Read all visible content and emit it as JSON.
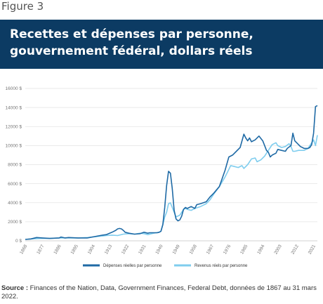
{
  "figure_label": "Figure 3",
  "title_line1": "Recettes et dépenses par personne,",
  "title_line2": "gouvernement fédéral, dollars réels",
  "source_label": "Source :",
  "source_text": "Finances of the Nation, Data, Government Finances, Federal Debt, données de 1867 au 31 mars 2022.",
  "colors": {
    "banner": "#0c3b63",
    "expenses": "#1f6aa5",
    "revenues": "#7fcdee"
  },
  "chart_data": {
    "type": "line",
    "xlim": [
      1867,
      2022
    ],
    "ylim": [
      0,
      16000
    ],
    "y_ticks": [
      "0 $",
      "2000 $",
      "4000 $",
      "6000 $",
      "8000 $",
      "10000 $",
      "12000 $",
      "14000 $",
      "16000 $"
    ],
    "y_tick_values": [
      0,
      2000,
      4000,
      6000,
      8000,
      10000,
      12000,
      14000,
      16000
    ],
    "x_ticks": [
      "1868",
      "1877",
      "1886",
      "1895",
      "1904",
      "1913",
      "1922",
      "1931",
      "1940",
      "1949",
      "1958",
      "1967",
      "1976",
      "1985",
      "1994",
      "2003",
      "2012",
      "2021"
    ],
    "x_tick_values": [
      1868,
      1877,
      1886,
      1895,
      1904,
      1913,
      1922,
      1931,
      1940,
      1949,
      1958,
      1967,
      1976,
      1985,
      1994,
      2003,
      2012,
      2021
    ],
    "legend_position": "bottom",
    "series": [
      {
        "name": "Dépenses réelles par personne",
        "x": [
          1867,
          1870,
          1873,
          1876,
          1880,
          1885,
          1886,
          1888,
          1890,
          1895,
          1900,
          1904,
          1908,
          1910,
          1913,
          1915,
          1916,
          1917,
          1918,
          1919,
          1920,
          1922,
          1925,
          1928,
          1930,
          1932,
          1933,
          1935,
          1937,
          1938,
          1939,
          1940,
          1941,
          1942,
          1943,
          1944,
          1945,
          1946,
          1947,
          1948,
          1949,
          1950,
          1951,
          1952,
          1953,
          1955,
          1957,
          1958,
          1960,
          1963,
          1965,
          1967,
          1970,
          1973,
          1975,
          1977,
          1979,
          1981,
          1983,
          1984,
          1985,
          1986,
          1987,
          1989,
          1991,
          1993,
          1994,
          1995,
          1996,
          1997,
          1998,
          2000,
          2001,
          2003,
          2005,
          2006,
          2008,
          2009,
          2010,
          2011,
          2013,
          2015,
          2017,
          2018,
          2019,
          2020,
          2021,
          2022
        ],
        "y": [
          150,
          200,
          350,
          300,
          250,
          300,
          400,
          300,
          350,
          300,
          300,
          450,
          600,
          650,
          900,
          1100,
          1250,
          1300,
          1250,
          1100,
          900,
          800,
          700,
          750,
          900,
          800,
          850,
          850,
          850,
          900,
          1000,
          1700,
          3500,
          5800,
          7300,
          7100,
          5500,
          3200,
          2300,
          2100,
          2200,
          2600,
          3300,
          3500,
          3400,
          3600,
          3400,
          3800,
          3900,
          4100,
          4600,
          5000,
          5700,
          7400,
          8800,
          9000,
          9400,
          9800,
          11200,
          10800,
          10500,
          10800,
          10400,
          10600,
          11000,
          10500,
          10000,
          9500,
          9300,
          8800,
          9000,
          9200,
          9600,
          9500,
          9400,
          9700,
          10000,
          11300,
          10500,
          10300,
          9900,
          9700,
          9700,
          9800,
          10100,
          11300,
          14100,
          14200
        ]
      },
      {
        "name": "Revenus réels par personne",
        "x": [
          1867,
          1870,
          1875,
          1880,
          1885,
          1890,
          1895,
          1900,
          1905,
          1910,
          1913,
          1916,
          1919,
          1922,
          1925,
          1928,
          1930,
          1932,
          1935,
          1938,
          1939,
          1940,
          1941,
          1942,
          1943,
          1944,
          1945,
          1946,
          1947,
          1948,
          1949,
          1950,
          1951,
          1952,
          1953,
          1955,
          1957,
          1960,
          1963,
          1965,
          1967,
          1970,
          1973,
          1975,
          1976,
          1978,
          1980,
          1982,
          1983,
          1985,
          1987,
          1989,
          1990,
          1992,
          1994,
          1996,
          1998,
          2000,
          2001,
          2003,
          2005,
          2007,
          2008,
          2009,
          2010,
          2012,
          2015,
          2017,
          2019,
          2020,
          2021,
          2022
        ],
        "y": [
          150,
          200,
          250,
          250,
          300,
          300,
          300,
          350,
          450,
          550,
          600,
          550,
          700,
          750,
          700,
          800,
          750,
          650,
          800,
          900,
          1000,
          1700,
          2500,
          3000,
          3900,
          4000,
          3500,
          3000,
          2500,
          2600,
          2700,
          3000,
          3300,
          3400,
          3300,
          3200,
          3400,
          3600,
          3900,
          4300,
          4900,
          5700,
          6700,
          7500,
          7900,
          7800,
          7700,
          7900,
          7600,
          8000,
          8600,
          8700,
          8300,
          8500,
          8900,
          9500,
          10100,
          10300,
          10000,
          9800,
          9900,
          10200,
          9900,
          9400,
          9400,
          9500,
          9500,
          9700,
          10300,
          10600,
          10000,
          11100
        ]
      }
    ]
  }
}
